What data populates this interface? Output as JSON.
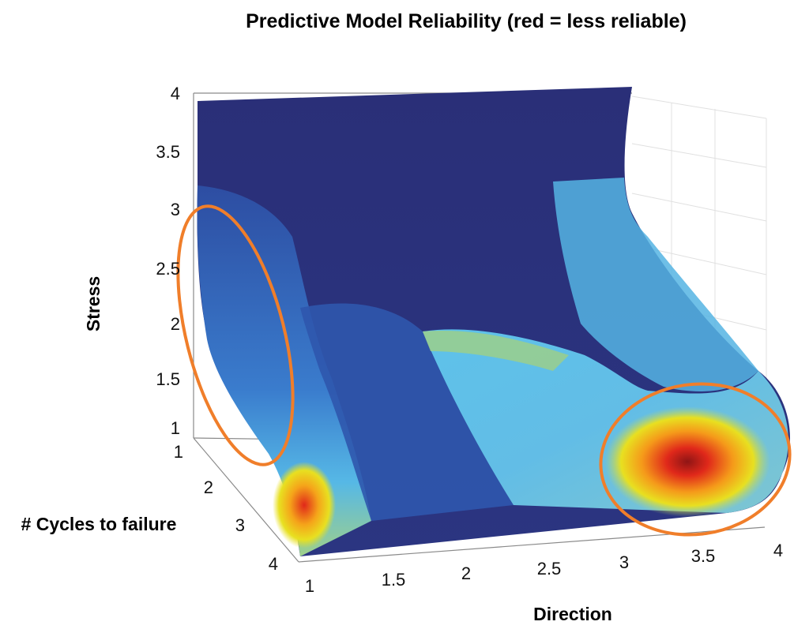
{
  "chart_data": {
    "type": "surface3d",
    "title": "Predictive Model Reliability (red = less reliable)",
    "xlabel": "Direction",
    "ylabel": "# Cycles to failure",
    "zlabel": "Stress",
    "x_ticks": [
      "1",
      "1.5",
      "2",
      "2.5",
      "3",
      "3.5",
      "4"
    ],
    "y_ticks": [
      "1",
      "2",
      "3",
      "4"
    ],
    "z_ticks": [
      "1",
      "1.5",
      "2",
      "2.5",
      "3",
      "3.5",
      "4"
    ],
    "xlim": [
      1,
      4
    ],
    "ylim": [
      1,
      4
    ],
    "zlim": [
      1,
      4
    ],
    "colormap": [
      "#2a2f7a",
      "#2d4ea3",
      "#3f8fd8",
      "#5bc3ea",
      "#9fd08a",
      "#e8e020",
      "#f5a41a",
      "#e8321c",
      "#8f1515"
    ],
    "colorscale_note": "red = less reliable",
    "highlight_regions": [
      "left-edge",
      "bottom-right"
    ],
    "highlight_color": "#f07e2a"
  }
}
